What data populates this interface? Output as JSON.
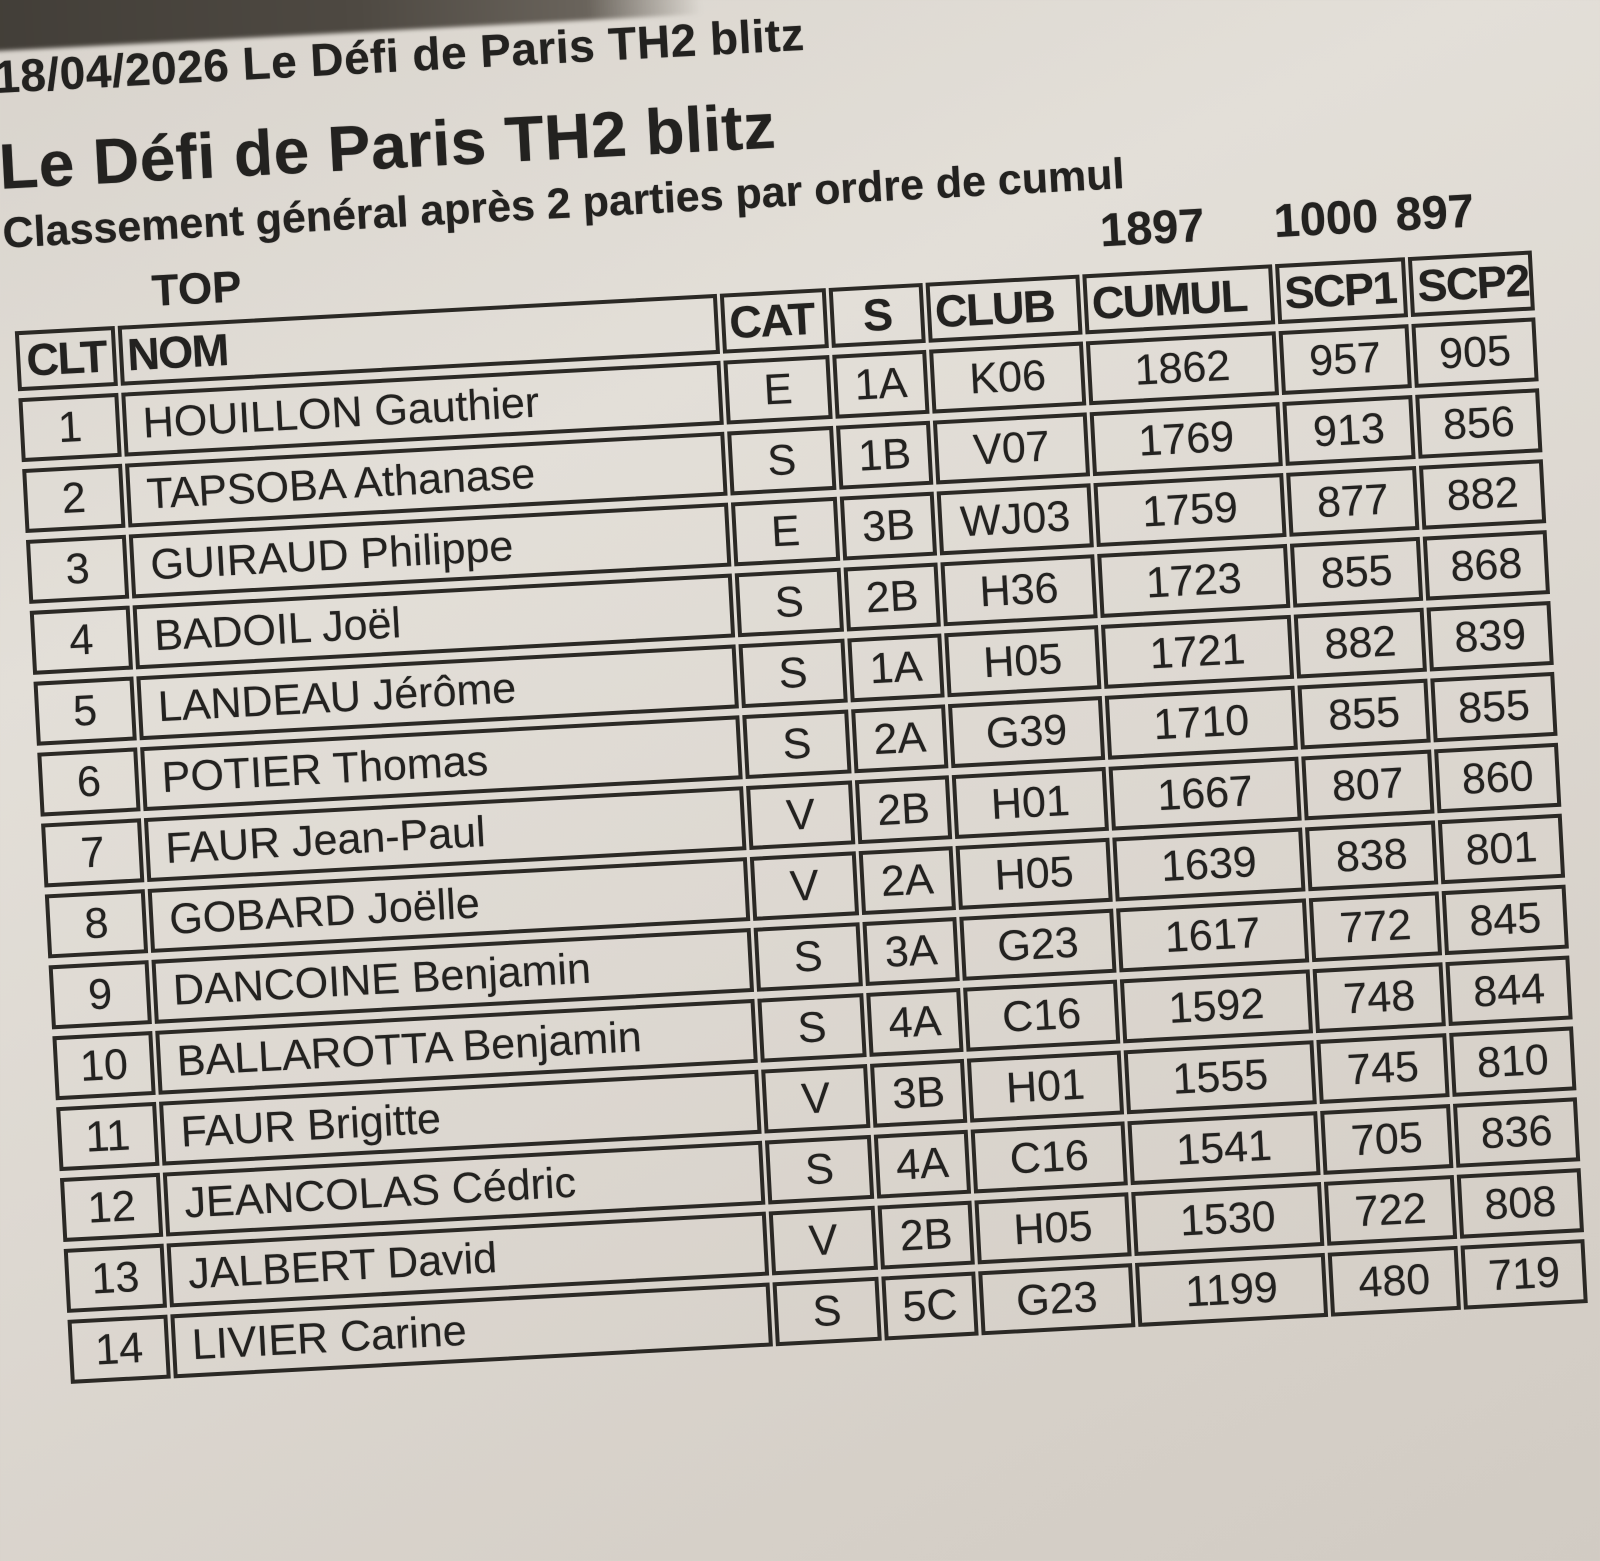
{
  "page": {
    "date_line": "18/04/2026 Le Défi de Paris TH2 blitz",
    "title": "Le Défi de Paris TH2 blitz",
    "subtitle": "Classement général après 2 parties par ordre de cumul",
    "top_label": "TOP",
    "top_values": {
      "cumul": "1897",
      "scp1": "1000",
      "scp2": "897"
    }
  },
  "table": {
    "columns": [
      "CLT",
      "NOM",
      "CAT",
      "S",
      "CLUB",
      "CUMUL",
      "SCP1",
      "SCP2"
    ],
    "keys": [
      "clt",
      "nom",
      "cat",
      "s",
      "club",
      "cumul",
      "scp1",
      "scp2"
    ],
    "rows": [
      {
        "clt": "1",
        "nom": "HOUILLON Gauthier",
        "cat": "E",
        "s": "1A",
        "club": "K06",
        "cumul": "1862",
        "scp1": "957",
        "scp2": "905"
      },
      {
        "clt": "2",
        "nom": "TAPSOBA Athanase",
        "cat": "S",
        "s": "1B",
        "club": "V07",
        "cumul": "1769",
        "scp1": "913",
        "scp2": "856"
      },
      {
        "clt": "3",
        "nom": "GUIRAUD Philippe",
        "cat": "E",
        "s": "3B",
        "club": "WJ03",
        "cumul": "1759",
        "scp1": "877",
        "scp2": "882"
      },
      {
        "clt": "4",
        "nom": "BADOIL Joël",
        "cat": "S",
        "s": "2B",
        "club": "H36",
        "cumul": "1723",
        "scp1": "855",
        "scp2": "868"
      },
      {
        "clt": "5",
        "nom": "LANDEAU Jérôme",
        "cat": "S",
        "s": "1A",
        "club": "H05",
        "cumul": "1721",
        "scp1": "882",
        "scp2": "839"
      },
      {
        "clt": "6",
        "nom": "POTIER Thomas",
        "cat": "S",
        "s": "2A",
        "club": "G39",
        "cumul": "1710",
        "scp1": "855",
        "scp2": "855"
      },
      {
        "clt": "7",
        "nom": "FAUR Jean-Paul",
        "cat": "V",
        "s": "2B",
        "club": "H01",
        "cumul": "1667",
        "scp1": "807",
        "scp2": "860"
      },
      {
        "clt": "8",
        "nom": "GOBARD Joëlle",
        "cat": "V",
        "s": "2A",
        "club": "H05",
        "cumul": "1639",
        "scp1": "838",
        "scp2": "801"
      },
      {
        "clt": "9",
        "nom": "DANCOINE Benjamin",
        "cat": "S",
        "s": "3A",
        "club": "G23",
        "cumul": "1617",
        "scp1": "772",
        "scp2": "845"
      },
      {
        "clt": "10",
        "nom": "BALLAROTTA Benjamin",
        "cat": "S",
        "s": "4A",
        "club": "C16",
        "cumul": "1592",
        "scp1": "748",
        "scp2": "844"
      },
      {
        "clt": "11",
        "nom": "FAUR Brigitte",
        "cat": "V",
        "s": "3B",
        "club": "H01",
        "cumul": "1555",
        "scp1": "745",
        "scp2": "810"
      },
      {
        "clt": "12",
        "nom": "JEANCOLAS Cédric",
        "cat": "S",
        "s": "4A",
        "club": "C16",
        "cumul": "1541",
        "scp1": "705",
        "scp2": "836"
      },
      {
        "clt": "13",
        "nom": "JALBERT David",
        "cat": "V",
        "s": "2B",
        "club": "H05",
        "cumul": "1530",
        "scp1": "722",
        "scp2": "808"
      },
      {
        "clt": "14",
        "nom": "LIVIER Carine",
        "cat": "S",
        "s": "5C",
        "club": "G23",
        "cumul": "1199",
        "scp1": "480",
        "scp2": "719"
      }
    ]
  },
  "colors": {
    "paper": "#ddd8d1",
    "ink": "#232220",
    "table_border": "#2b2925",
    "photo_edge": "#4a453f"
  }
}
